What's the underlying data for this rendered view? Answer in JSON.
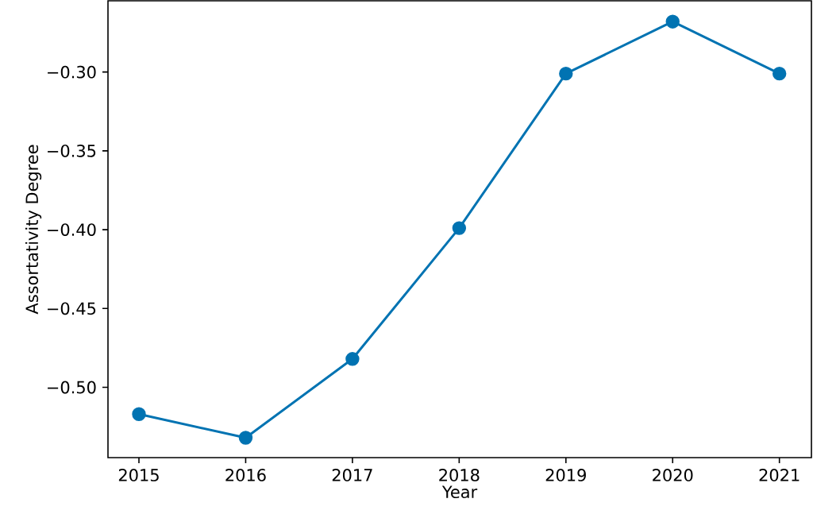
{
  "chart_data": {
    "type": "line",
    "xlabel": "Year",
    "ylabel": "Assortativity Degree",
    "x": [
      2015,
      2016,
      2017,
      2018,
      2019,
      2020,
      2021
    ],
    "series": [
      {
        "color": "#0173b2",
        "values": [
          -0.517,
          -0.532,
          -0.482,
          -0.399,
          -0.301,
          -0.268,
          -0.301
        ]
      }
    ],
    "marker": "circle",
    "line_style": "solid",
    "xlim": [
      2014.71,
      2021.3
    ],
    "ylim": [
      -0.5446,
      -0.2548
    ],
    "xticks": [
      2015,
      2016,
      2017,
      2018,
      2019,
      2020,
      2021
    ],
    "yticks": [
      {
        "value": -0.5,
        "label": "−0.50"
      },
      {
        "value": -0.45,
        "label": "−0.45"
      },
      {
        "value": -0.4,
        "label": "−0.40"
      },
      {
        "value": -0.35,
        "label": "−0.35"
      },
      {
        "value": -0.3,
        "label": "−0.30"
      }
    ]
  }
}
